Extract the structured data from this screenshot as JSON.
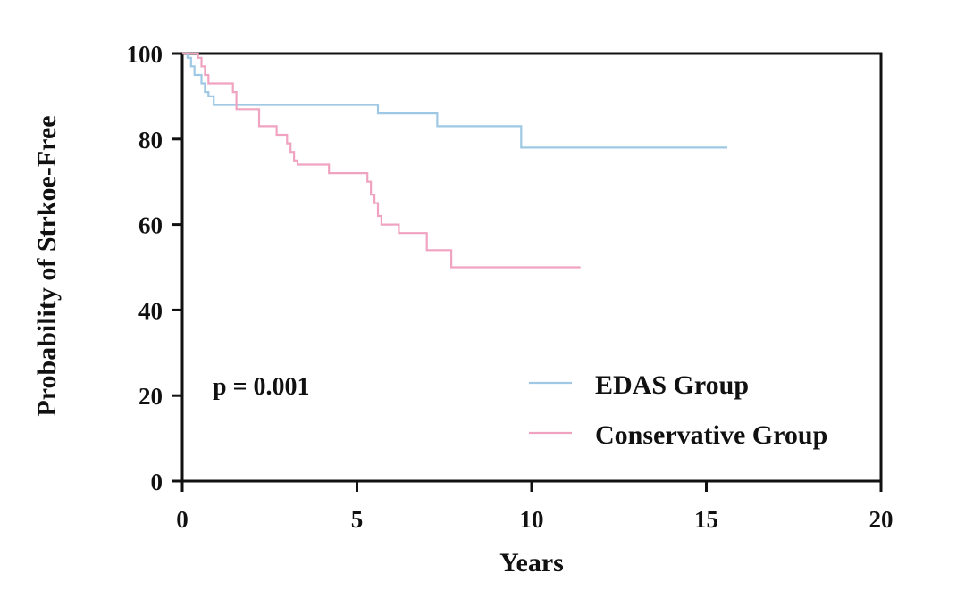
{
  "chart_data": {
    "type": "line",
    "step": true,
    "xlabel": "Years",
    "ylabel": "Probability of Strkoe-Free",
    "xlim": [
      0,
      20
    ],
    "ylim": [
      0,
      100
    ],
    "x_ticks": [
      "0",
      "5",
      "10",
      "15",
      "20"
    ],
    "y_ticks": [
      "0",
      "20",
      "40",
      "60",
      "80",
      "100"
    ],
    "x_tick_values": [
      0,
      5,
      10,
      15,
      20
    ],
    "y_tick_values": [
      0,
      20,
      40,
      60,
      80,
      100
    ],
    "grid": false,
    "legend_position": "bottom-right",
    "annotations": [
      {
        "text": "p = 0.001"
      }
    ],
    "series": [
      {
        "name": "EDAS Group",
        "color": "#9ec8e4",
        "x": [
          0,
          0.15,
          0.25,
          0.35,
          0.55,
          0.65,
          0.75,
          0.9,
          5.6,
          7.3,
          9.7,
          15.6
        ],
        "y": [
          100,
          99,
          97,
          95,
          93,
          91,
          90,
          88,
          86,
          83,
          78,
          78
        ]
      },
      {
        "name": "Conservative Group",
        "color": "#f0a3c0",
        "x": [
          0,
          0.45,
          0.55,
          0.65,
          0.75,
          1.45,
          1.55,
          2.2,
          2.7,
          3.0,
          3.1,
          3.2,
          3.3,
          3.4,
          4.2,
          5.3,
          5.4,
          5.5,
          5.6,
          5.7,
          5.8,
          6.0,
          6.2,
          7.0,
          7.7,
          11.4
        ],
        "y": [
          100,
          99,
          97,
          95,
          93,
          91,
          87,
          83,
          81,
          79,
          77,
          75,
          74,
          74,
          72,
          70,
          67,
          65,
          62,
          60,
          60,
          60,
          58,
          54,
          50,
          50
        ]
      }
    ]
  }
}
